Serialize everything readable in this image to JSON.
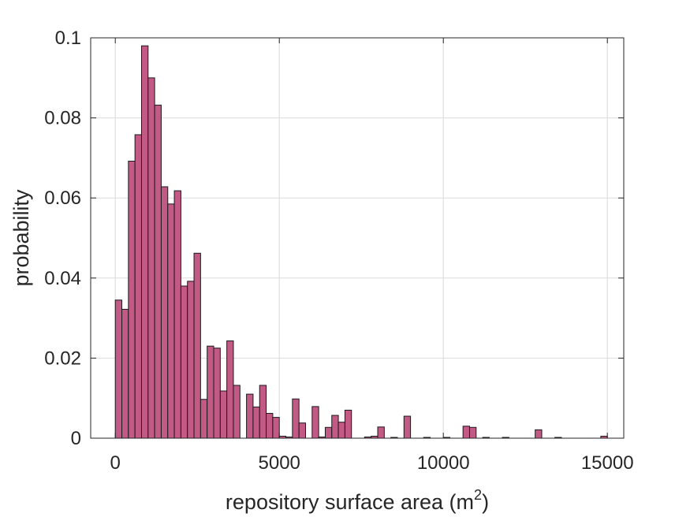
{
  "chart_data": {
    "type": "bar",
    "subtype": "histogram",
    "title": "",
    "xlabel": "repository surface area (m",
    "xlabel_superscript": "2",
    "xlabel_suffix": ")",
    "ylabel": "probability",
    "xlim": [
      -750,
      15500
    ],
    "ylim": [
      0,
      0.1
    ],
    "xticks": [
      0,
      5000,
      10000,
      15000
    ],
    "xtick_labels": [
      "0",
      "5000",
      "10000",
      "15000"
    ],
    "yticks": [
      0,
      0.02,
      0.04,
      0.06,
      0.08,
      0.1
    ],
    "ytick_labels": [
      "0",
      "0.02",
      "0.04",
      "0.06",
      "0.08",
      "0.1"
    ],
    "grid": true,
    "bar_color": "#c35a86",
    "edge_color": "#1a1a1a",
    "bin_width": 200,
    "bin_start": 0,
    "values": [
      0.0345,
      0.0322,
      0.0692,
      0.0758,
      0.098,
      0.09,
      0.0832,
      0.0628,
      0.0585,
      0.0618,
      0.038,
      0.0392,
      0.0462,
      0.0097,
      0.023,
      0.0225,
      0.0118,
      0.0243,
      0.0132,
      0.0,
      0.011,
      0.0078,
      0.0132,
      0.0062,
      0.0052,
      0.0005,
      0.0003,
      0.0098,
      0.0038,
      0.0,
      0.0079,
      0.0003,
      0.0027,
      0.0057,
      0.004,
      0.007,
      0.0,
      0.0,
      0.0003,
      0.0005,
      0.0028,
      0.0,
      0.0002,
      0.0,
      0.0055,
      0.0,
      0.0,
      0.0002,
      0.0,
      0.0,
      0.0002,
      0.0,
      0.0,
      0.003,
      0.0027,
      0.0,
      0.0002,
      0.0,
      0.0,
      0.0002,
      0.0,
      0.0,
      0.0,
      0.0,
      0.0021,
      0.0,
      0.0,
      0.0002,
      0.0,
      0.0,
      0.0,
      0.0,
      0.0,
      0.0,
      0.0005
    ]
  }
}
